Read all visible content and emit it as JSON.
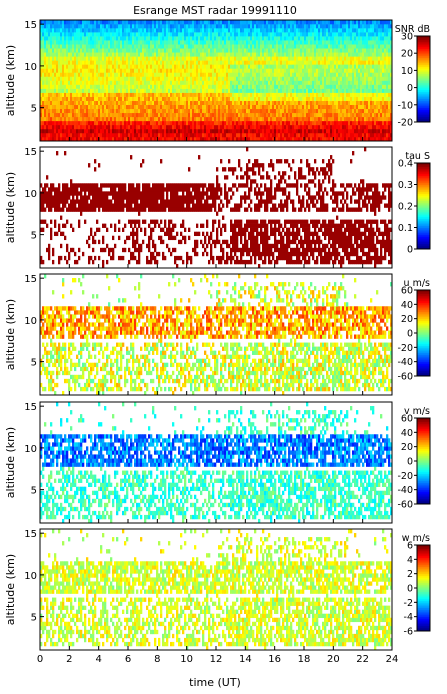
{
  "title": "Esrange MST radar 19991110",
  "xlabel": "time (UT)",
  "x_ticks": [
    0,
    2,
    4,
    6,
    8,
    10,
    12,
    14,
    16,
    18,
    20,
    22,
    24
  ],
  "chart_data": [
    {
      "type": "heatmap",
      "quantity": "SNR",
      "colorbar_label": "SNR dB",
      "ylabel": "altitude (km)",
      "x_range": [
        0,
        24
      ],
      "y_range": [
        1,
        15.5
      ],
      "y_ticks": [
        5,
        10,
        15
      ],
      "colorbar_range": [
        -20,
        30
      ],
      "colorbar_ticks": [
        30,
        20,
        10,
        0,
        -10,
        -20
      ],
      "colormap": "jet",
      "cells": "quasi-continuous: strong SNR (20-30 dB) below ~3 km, ~10-15 dB near 9-10 km, ~0 dB near 13-15 km"
    },
    {
      "type": "heatmap",
      "quantity": "tau",
      "colorbar_label": "tau S",
      "ylabel": "altitude (km)",
      "x_range": [
        0,
        24
      ],
      "y_range": [
        1,
        15.5
      ],
      "y_ticks": [
        5,
        10,
        15
      ],
      "colorbar_range": [
        0,
        0.4
      ],
      "colorbar_ticks": [
        0.4,
        0.3,
        0.2,
        0.1,
        0
      ],
      "colormap": "jet",
      "cells": "dark-red blocks near 8-11 km and 2-7 km, sparse elsewhere"
    },
    {
      "type": "heatmap",
      "quantity": "u",
      "colorbar_label": "u m/s",
      "ylabel": "altitude (km)",
      "x_range": [
        0,
        24
      ],
      "y_range": [
        1,
        15.5
      ],
      "y_ticks": [
        5,
        10,
        15
      ],
      "colorbar_range": [
        -60,
        60
      ],
      "colorbar_ticks": [
        60,
        40,
        20,
        0,
        -20,
        -40,
        -60
      ],
      "colormap": "jet",
      "cells": "about +20 to +40 m/s near 9-11 km, about 0 to +20 m/s below 7 km"
    },
    {
      "type": "heatmap",
      "quantity": "v",
      "colorbar_label": "v m/s",
      "ylabel": "altitude (km)",
      "x_range": [
        0,
        24
      ],
      "y_range": [
        1,
        15.5
      ],
      "y_ticks": [
        5,
        10,
        15
      ],
      "colorbar_range": [
        -60,
        60
      ],
      "colorbar_ticks": [
        60,
        40,
        20,
        0,
        -20,
        -40,
        -60
      ],
      "colormap": "jet",
      "cells": "about -20 to -40 m/s near 8-11 km, about -10 to 0 m/s below 7 km"
    },
    {
      "type": "heatmap",
      "quantity": "w",
      "colorbar_label": "w m/s",
      "ylabel": "altitude (km)",
      "x_range": [
        0,
        24
      ],
      "y_range": [
        1,
        15.5
      ],
      "y_ticks": [
        5,
        10,
        15
      ],
      "colorbar_range": [
        -6,
        6
      ],
      "colorbar_ticks": [
        6,
        4,
        2,
        0,
        -2,
        -4,
        -6
      ],
      "colormap": "jet",
      "cells": "mostly near 0 to +1 m/s (light green) throughout"
    }
  ]
}
